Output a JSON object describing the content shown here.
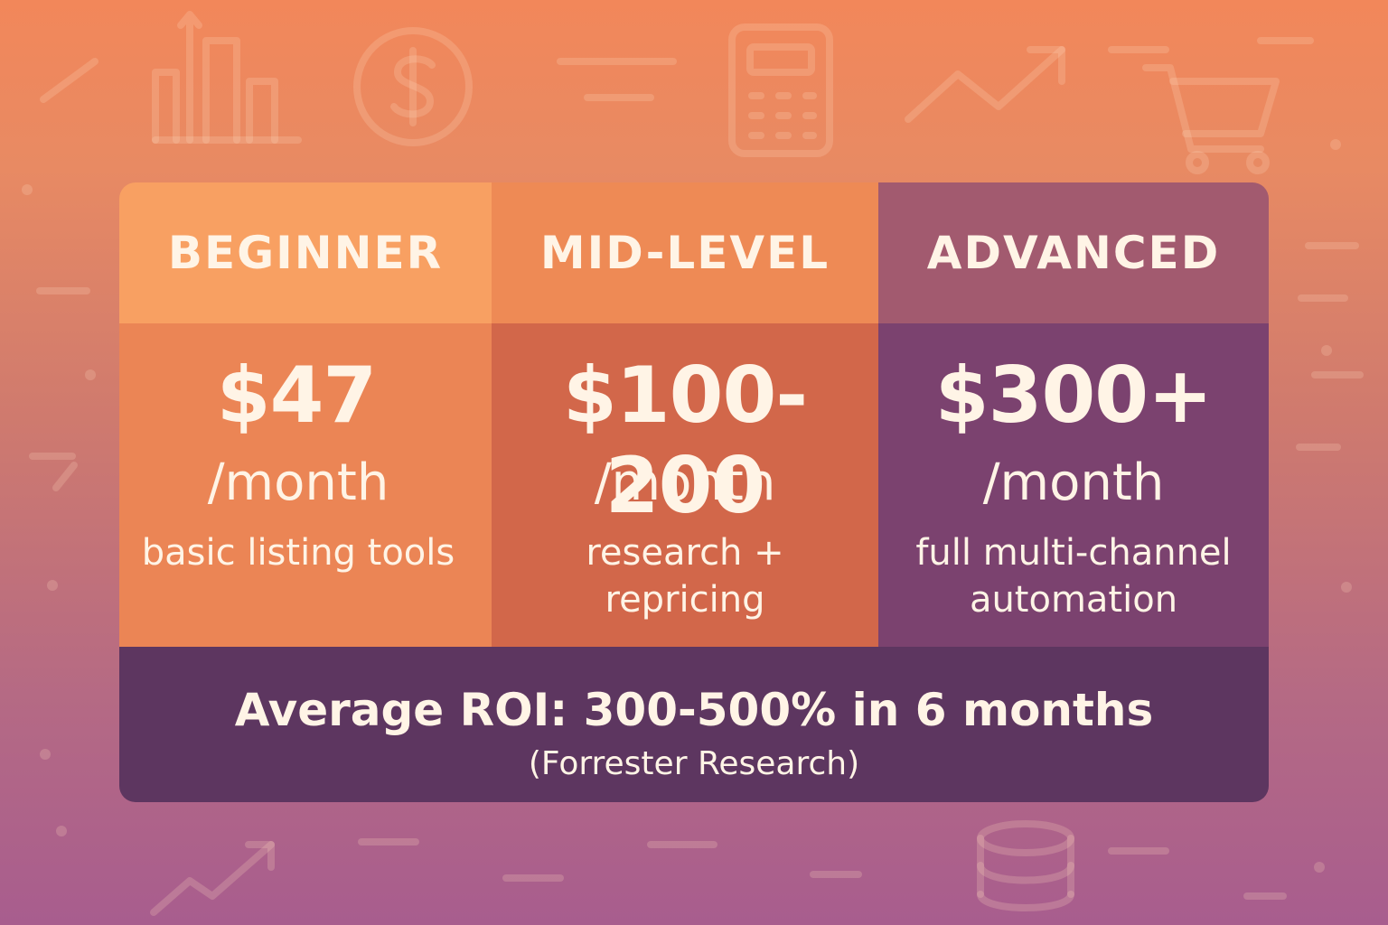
{
  "tiers": [
    {
      "name": "BEGINNER",
      "price": "$47",
      "period": "/month",
      "description": "basic listing tools"
    },
    {
      "name": "MID-LEVEL",
      "price": "$100-200",
      "period": "/month",
      "description": "research + repricing"
    },
    {
      "name": "ADVANCED",
      "price": "$300+",
      "period": "/month",
      "description": "full multi-channel automation"
    }
  ],
  "footer": {
    "roi": "Average ROI: 300-500% in 6 months",
    "source": "(Forrester Research)"
  },
  "background_icons": [
    "bar-chart-icon",
    "dollar-coin-icon",
    "calculator-icon",
    "trend-arrow-icon",
    "shopping-cart-icon",
    "database-icon"
  ]
}
